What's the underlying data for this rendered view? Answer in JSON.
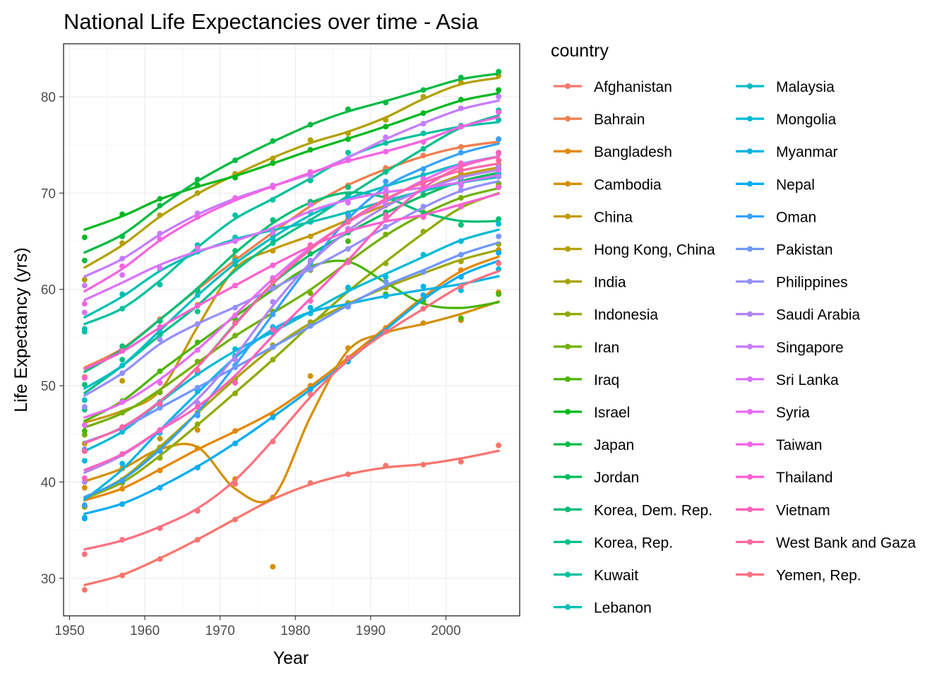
{
  "chart_data": {
    "type": "line",
    "title": "National Life Expectancies over time - Asia",
    "xlabel": "Year",
    "ylabel": "Life Expectancy (yrs)",
    "legend_title": "country",
    "legend_position": "right",
    "grid": true,
    "xlim": [
      1949.2,
      2009.8
    ],
    "ylim": [
      26.1,
      85.5
    ],
    "x_ticks": [
      1950,
      1960,
      1970,
      1980,
      1990,
      2000
    ],
    "y_ticks": [
      30,
      40,
      50,
      60,
      70,
      80
    ],
    "x": [
      1952,
      1957,
      1962,
      1967,
      1972,
      1977,
      1982,
      1987,
      1992,
      1997,
      2002,
      2007
    ],
    "series": [
      {
        "name": "Afghanistan",
        "color": "#F8766D",
        "values": [
          28.8,
          30.3,
          32.0,
          34.0,
          36.1,
          38.4,
          39.9,
          40.8,
          41.7,
          41.8,
          42.1,
          43.8
        ]
      },
      {
        "name": "Bahrain",
        "color": "#F07F4F",
        "values": [
          50.9,
          53.8,
          56.9,
          59.9,
          63.3,
          65.6,
          69.1,
          70.8,
          72.6,
          73.9,
          74.8,
          75.6
        ]
      },
      {
        "name": "Bangladesh",
        "color": "#E58700",
        "values": [
          37.5,
          39.3,
          41.2,
          43.5,
          45.3,
          46.9,
          50.0,
          52.8,
          56.0,
          59.4,
          62.0,
          64.1
        ]
      },
      {
        "name": "Cambodia",
        "color": "#D58F00",
        "values": [
          39.4,
          41.4,
          43.4,
          45.4,
          40.3,
          31.2,
          51.0,
          53.9,
          55.8,
          56.5,
          56.8,
          59.7
        ]
      },
      {
        "name": "China",
        "color": "#C49A00",
        "values": [
          44.0,
          50.5,
          44.5,
          58.4,
          63.1,
          64.0,
          65.5,
          67.3,
          68.7,
          70.4,
          72.0,
          73.0
        ]
      },
      {
        "name": "Hong Kong, China",
        "color": "#B3A000",
        "values": [
          61.0,
          64.8,
          67.7,
          70.0,
          72.0,
          73.6,
          75.5,
          76.2,
          77.6,
          80.0,
          81.5,
          82.2
        ]
      },
      {
        "name": "India",
        "color": "#A3A500",
        "values": [
          37.4,
          40.2,
          43.6,
          47.2,
          50.7,
          54.2,
          56.6,
          58.6,
          60.2,
          61.8,
          62.9,
          64.7
        ]
      },
      {
        "name": "Indonesia",
        "color": "#8EAB00",
        "values": [
          37.5,
          39.9,
          42.5,
          46.0,
          49.2,
          52.7,
          56.2,
          60.1,
          62.7,
          66.0,
          68.6,
          70.7
        ]
      },
      {
        "name": "Iran",
        "color": "#72B000",
        "values": [
          44.9,
          47.2,
          49.3,
          52.5,
          55.2,
          57.7,
          59.6,
          63.0,
          65.7,
          68.0,
          69.5,
          71.0
        ]
      },
      {
        "name": "Iraq",
        "color": "#4BB400",
        "values": [
          45.3,
          48.4,
          51.5,
          54.5,
          56.9,
          60.4,
          62.0,
          65.0,
          59.5,
          58.8,
          57.0,
          59.5
        ]
      },
      {
        "name": "Israel",
        "color": "#00B81F",
        "values": [
          65.4,
          67.8,
          69.4,
          70.8,
          71.6,
          73.1,
          74.5,
          75.6,
          76.9,
          78.3,
          79.7,
          80.7
        ]
      },
      {
        "name": "Japan",
        "color": "#00BA42",
        "values": [
          63.0,
          65.5,
          68.7,
          71.4,
          73.4,
          75.4,
          77.1,
          78.7,
          79.4,
          80.7,
          82.0,
          82.6
        ]
      },
      {
        "name": "Jordan",
        "color": "#00BC5E",
        "values": [
          43.2,
          45.7,
          48.1,
          51.6,
          56.5,
          61.1,
          63.7,
          65.9,
          68.0,
          69.8,
          71.3,
          72.5
        ]
      },
      {
        "name": "Korea, Dem. Rep.",
        "color": "#00BE75",
        "values": [
          50.1,
          54.1,
          56.7,
          59.9,
          64.0,
          67.2,
          69.1,
          70.6,
          69.9,
          67.7,
          66.7,
          67.3
        ]
      },
      {
        "name": "Korea, Rep.",
        "color": "#00BF8B",
        "values": [
          47.5,
          52.7,
          55.3,
          57.7,
          62.6,
          64.8,
          67.1,
          69.8,
          72.2,
          74.6,
          77.0,
          78.6
        ]
      },
      {
        "name": "Kuwait",
        "color": "#00C0A0",
        "values": [
          55.6,
          58.0,
          60.5,
          64.6,
          67.7,
          69.3,
          71.3,
          74.2,
          75.2,
          76.2,
          76.9,
          77.6
        ]
      },
      {
        "name": "Lebanon",
        "color": "#00BFB3",
        "values": [
          55.9,
          59.5,
          62.1,
          63.9,
          65.4,
          66.1,
          67.0,
          67.9,
          69.3,
          70.3,
          71.0,
          72.0
        ]
      },
      {
        "name": "Malaysia",
        "color": "#00BDC5",
        "values": [
          48.5,
          52.1,
          55.7,
          59.4,
          63.0,
          65.3,
          68.0,
          69.5,
          70.7,
          71.9,
          73.0,
          74.2
        ]
      },
      {
        "name": "Mongolia",
        "color": "#00BAD6",
        "values": [
          42.2,
          45.2,
          48.3,
          51.3,
          53.8,
          55.5,
          57.5,
          60.2,
          61.3,
          63.6,
          65.0,
          66.8
        ]
      },
      {
        "name": "Myanmar",
        "color": "#00B4E5",
        "values": [
          36.3,
          41.9,
          45.1,
          49.4,
          53.1,
          56.1,
          58.1,
          58.3,
          59.3,
          60.3,
          59.9,
          62.1
        ]
      },
      {
        "name": "Nepal",
        "color": "#00ADF2",
        "values": [
          36.2,
          37.7,
          39.4,
          41.5,
          44.0,
          46.7,
          49.6,
          52.5,
          55.7,
          59.4,
          61.3,
          63.8
        ]
      },
      {
        "name": "Oman",
        "color": "#35A2FC",
        "values": [
          37.6,
          40.1,
          43.2,
          46.9,
          52.1,
          57.4,
          62.7,
          67.7,
          71.2,
          72.5,
          74.2,
          75.6
        ]
      },
      {
        "name": "Pakistan",
        "color": "#6F97FF",
        "values": [
          43.4,
          45.6,
          47.7,
          49.8,
          51.9,
          54.0,
          56.2,
          58.2,
          60.8,
          61.8,
          63.6,
          65.5
        ]
      },
      {
        "name": "Philippines",
        "color": "#9590FF",
        "values": [
          47.8,
          51.3,
          54.8,
          56.4,
          58.1,
          60.1,
          62.1,
          64.2,
          66.5,
          68.6,
          70.3,
          71.7
        ]
      },
      {
        "name": "Saudi Arabia",
        "color": "#B085F5",
        "values": [
          40.0,
          42.9,
          45.3,
          48.2,
          52.7,
          58.7,
          63.0,
          66.3,
          68.8,
          70.5,
          71.6,
          72.8
        ]
      },
      {
        "name": "Singapore",
        "color": "#C77CFF",
        "values": [
          60.4,
          63.2,
          65.8,
          67.9,
          69.5,
          70.8,
          71.8,
          73.6,
          75.8,
          77.2,
          78.8,
          80.0
        ]
      },
      {
        "name": "Sri Lanka",
        "color": "#D973FC",
        "values": [
          57.6,
          61.5,
          62.2,
          64.3,
          65.0,
          65.9,
          68.8,
          69.0,
          70.4,
          70.5,
          70.8,
          72.4
        ]
      },
      {
        "name": "Syria",
        "color": "#E86BF4",
        "values": [
          45.9,
          48.3,
          50.3,
          53.7,
          57.3,
          61.2,
          64.6,
          67.0,
          69.2,
          71.5,
          73.1,
          74.1
        ]
      },
      {
        "name": "Taiwan",
        "color": "#F564E3",
        "values": [
          58.5,
          62.4,
          65.2,
          67.5,
          69.4,
          70.6,
          72.2,
          73.4,
          74.3,
          75.3,
          76.9,
          78.4
        ]
      },
      {
        "name": "Thailand",
        "color": "#FD61D1",
        "values": [
          50.8,
          53.6,
          56.1,
          58.3,
          60.4,
          62.5,
          64.6,
          66.1,
          67.3,
          67.5,
          68.6,
          70.6
        ]
      },
      {
        "name": "Vietnam",
        "color": "#FF62BC",
        "values": [
          40.4,
          42.9,
          45.4,
          47.8,
          50.3,
          55.8,
          58.8,
          62.8,
          67.7,
          70.7,
          73.0,
          74.2
        ]
      },
      {
        "name": "West Bank and Gaza",
        "color": "#FF67A4",
        "values": [
          43.2,
          45.7,
          48.1,
          51.6,
          56.5,
          60.8,
          64.4,
          67.0,
          69.7,
          71.1,
          72.4,
          73.4
        ]
      },
      {
        "name": "Yemen, Rep.",
        "color": "#FC717F",
        "values": [
          32.5,
          34.0,
          35.2,
          37.0,
          39.8,
          44.2,
          49.1,
          52.9,
          55.6,
          58.0,
          60.3,
          62.7
        ]
      }
    ]
  }
}
